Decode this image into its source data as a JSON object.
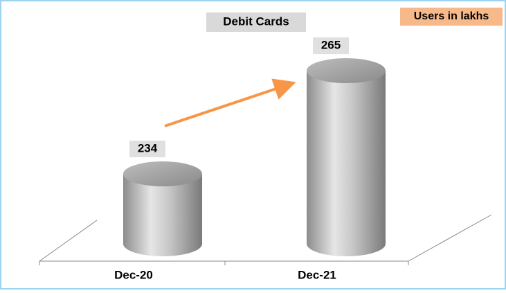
{
  "chart_data": {
    "type": "cylinder",
    "title": "Debit Cards",
    "annotation": "Users in lakhs",
    "categories": [
      "Dec-20",
      "Dec-21"
    ],
    "values": [
      234,
      265
    ],
    "color": "#a6a6a6",
    "ylim": [
      213,
      270
    ]
  }
}
